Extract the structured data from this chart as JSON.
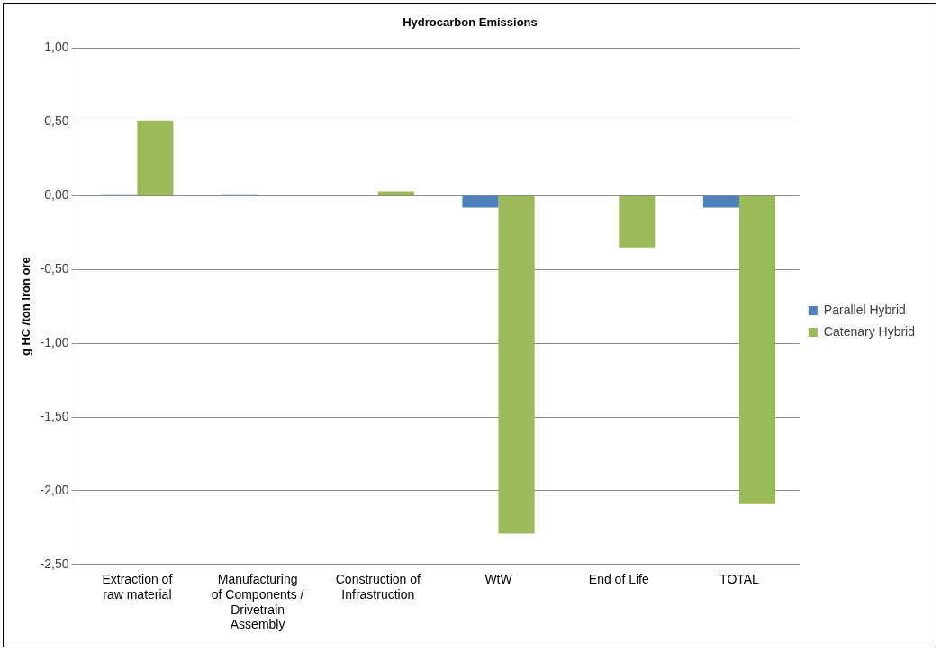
{
  "chart_data": {
    "type": "bar",
    "title": "Hydrocarbon Emissions",
    "ylabel": "g HC /ton iron ore",
    "categories": [
      "Extraction of raw material",
      "Manufacturing of Components / Drivetrain Assembly",
      "Construction of Infrastruction",
      "WtW",
      "End of Life",
      "TOTAL"
    ],
    "series": [
      {
        "name": "Parallel Hybrid",
        "color": "#4f81bd",
        "values": [
          0.01,
          0.01,
          0,
          -0.08,
          0,
          -0.08
        ]
      },
      {
        "name": "Catenary Hybrid",
        "color": "#9bbb59",
        "values": [
          0.51,
          0,
          0.03,
          -2.29,
          -0.35,
          -2.09
        ]
      }
    ],
    "ylim": [
      -2.5,
      1
    ],
    "yticks": [
      {
        "value": -2.5,
        "label": "-2,50"
      },
      {
        "value": -2,
        "label": "-2,00"
      },
      {
        "value": -1.5,
        "label": "-1,50"
      },
      {
        "value": -1,
        "label": "-1,00"
      },
      {
        "value": -0.5,
        "label": "-0,50"
      },
      {
        "value": 0,
        "label": "0,00"
      },
      {
        "value": 0.5,
        "label": "0,50"
      },
      {
        "value": 1,
        "label": "1,00"
      }
    ],
    "grid": "y",
    "legend": "right"
  }
}
